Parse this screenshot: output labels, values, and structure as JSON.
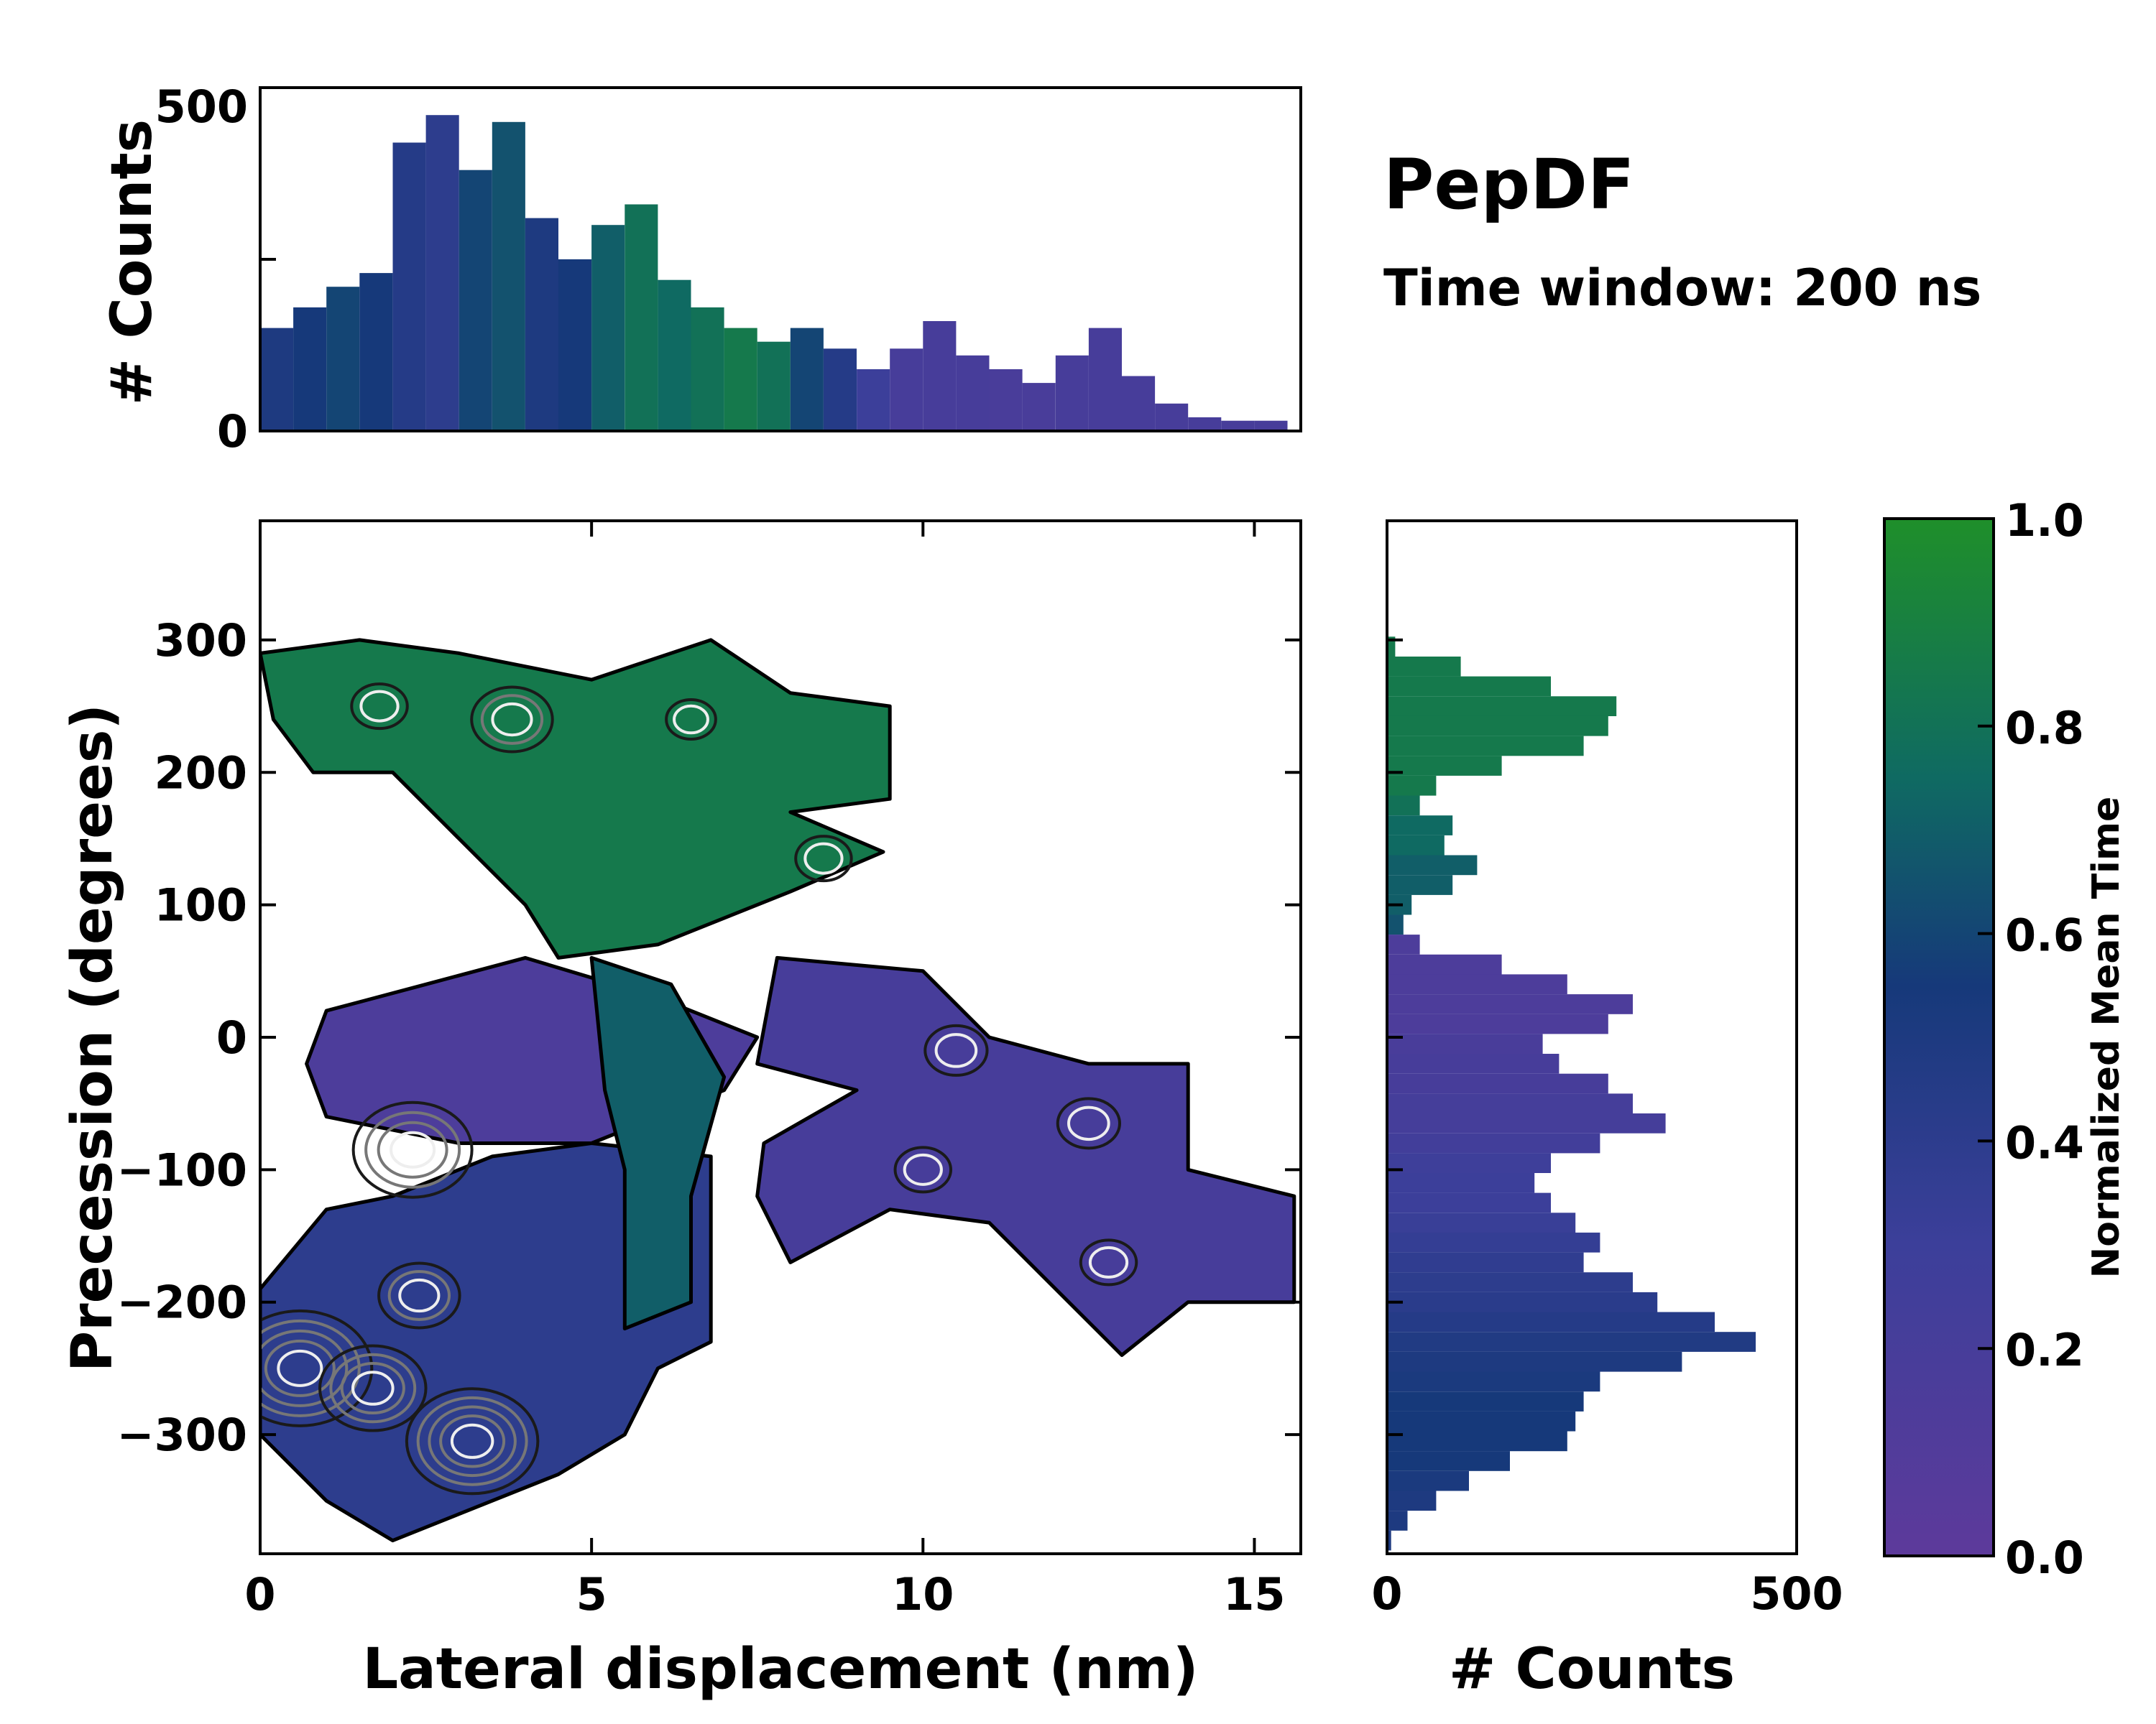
{
  "chart_data": {
    "type": "heatmap",
    "title": "PepDF",
    "subtitle": "Time window: 200 ns",
    "main": {
      "xlabel": "Lateral displacement (nm)",
      "ylabel": "Precession (degrees)",
      "xlim": [
        0,
        15.7
      ],
      "ylim": [
        -390,
        390
      ],
      "xticks": [
        "0",
        "5",
        "10",
        "15"
      ],
      "xtick_values": [
        0,
        5,
        10,
        15
      ],
      "yticks": [
        "300",
        "200",
        "100",
        "0",
        "−100",
        "−200",
        "−300"
      ],
      "ytick_values": [
        300,
        200,
        100,
        0,
        -100,
        -200,
        -300
      ],
      "regions": [
        {
          "name": "upper-green",
          "t": 0.85,
          "pts": [
            [
              0,
              290
            ],
            [
              1.5,
              300
            ],
            [
              3,
              290
            ],
            [
              5,
              270
            ],
            [
              6.8,
              300
            ],
            [
              8,
              260
            ],
            [
              9.5,
              250
            ],
            [
              9.5,
              180
            ],
            [
              8,
              170
            ],
            [
              9.4,
              140
            ],
            [
              8,
              110
            ],
            [
              6,
              70
            ],
            [
              4.5,
              60
            ],
            [
              4,
              100
            ],
            [
              3,
              150
            ],
            [
              2,
              200
            ],
            [
              0.8,
              200
            ],
            [
              0.2,
              240
            ]
          ]
        },
        {
          "name": "middle-purple",
          "t": 0.15,
          "pts": [
            [
              1,
              20
            ],
            [
              2.5,
              40
            ],
            [
              4,
              60
            ],
            [
              6,
              30
            ],
            [
              7.5,
              0
            ],
            [
              7,
              -40
            ],
            [
              5,
              -80
            ],
            [
              3,
              -80
            ],
            [
              1,
              -60
            ],
            [
              0.7,
              -20
            ]
          ]
        },
        {
          "name": "right-purple",
          "t": 0.2,
          "pts": [
            [
              7.8,
              60
            ],
            [
              10,
              50
            ],
            [
              11,
              0
            ],
            [
              12.5,
              -20
            ],
            [
              14,
              -20
            ],
            [
              14,
              -100
            ],
            [
              15.6,
              -120
            ],
            [
              15.6,
              -200
            ],
            [
              14,
              -200
            ],
            [
              13,
              -240
            ],
            [
              11,
              -140
            ],
            [
              9.5,
              -130
            ],
            [
              8,
              -170
            ],
            [
              7.5,
              -120
            ],
            [
              7.6,
              -80
            ],
            [
              9,
              -40
            ],
            [
              7.5,
              -20
            ]
          ]
        },
        {
          "name": "lower-blue",
          "t": 0.4,
          "pts": [
            [
              0,
              -190
            ],
            [
              1,
              -130
            ],
            [
              2,
              -120
            ],
            [
              3.5,
              -90
            ],
            [
              5,
              -80
            ],
            [
              6.8,
              -90
            ],
            [
              6.8,
              -230
            ],
            [
              6,
              -250
            ],
            [
              5.5,
              -300
            ],
            [
              4.5,
              -330
            ],
            [
              3,
              -360
            ],
            [
              2,
              -380
            ],
            [
              1,
              -350
            ],
            [
              0,
              -300
            ]
          ]
        },
        {
          "name": "bridge-green",
          "t": 0.7,
          "pts": [
            [
              5,
              60
            ],
            [
              6.2,
              40
            ],
            [
              7,
              -30
            ],
            [
              6.5,
              -120
            ],
            [
              6.5,
              -200
            ],
            [
              5.5,
              -220
            ],
            [
              5.5,
              -100
            ],
            [
              5.2,
              -40
            ]
          ]
        }
      ],
      "hotspots": [
        {
          "x": 0.6,
          "y": -250,
          "level": 1.0
        },
        {
          "x": 1.7,
          "y": -265,
          "level": 0.7
        },
        {
          "x": 3.2,
          "y": -305,
          "level": 0.9
        },
        {
          "x": 2.3,
          "y": -85,
          "level": 0.8
        },
        {
          "x": 2.4,
          "y": -195,
          "level": 0.5
        },
        {
          "x": 3.8,
          "y": 240,
          "level": 0.5
        },
        {
          "x": 10.5,
          "y": -10,
          "level": 0.35
        },
        {
          "x": 12.5,
          "y": -65,
          "level": 0.35
        },
        {
          "x": 10,
          "y": -100,
          "level": 0.3
        },
        {
          "x": 12.8,
          "y": -170,
          "level": 0.3
        },
        {
          "x": 8.5,
          "y": 135,
          "level": 0.3
        },
        {
          "x": 1.8,
          "y": 250,
          "level": 0.3
        },
        {
          "x": 6.5,
          "y": 240,
          "level": 0.25
        }
      ]
    },
    "top_histogram": {
      "ylabel": "# Counts",
      "ylim": [
        0,
        500
      ],
      "yticks": [
        "0",
        "500"
      ],
      "bin_width_nm": 0.5,
      "bin_centers": [
        0.25,
        0.75,
        1.25,
        1.75,
        2.25,
        2.75,
        3.25,
        3.75,
        4.25,
        4.75,
        5.25,
        5.75,
        6.25,
        6.75,
        7.25,
        7.75,
        8.25,
        8.75,
        9.25,
        9.75,
        10.25,
        10.75,
        11.25,
        11.75,
        12.25,
        12.75,
        13.25,
        13.75,
        14.25,
        14.75,
        15.25
      ],
      "values": [
        150,
        180,
        210,
        230,
        420,
        460,
        380,
        450,
        310,
        250,
        300,
        330,
        220,
        180,
        150,
        130,
        150,
        120,
        90,
        120,
        160,
        110,
        90,
        70,
        110,
        150,
        80,
        40,
        20,
        15,
        15
      ],
      "mean_time": [
        0.5,
        0.55,
        0.6,
        0.55,
        0.45,
        0.4,
        0.6,
        0.65,
        0.5,
        0.55,
        0.7,
        0.8,
        0.75,
        0.8,
        0.85,
        0.8,
        0.6,
        0.45,
        0.3,
        0.2,
        0.2,
        0.2,
        0.18,
        0.18,
        0.2,
        0.2,
        0.2,
        0.2,
        0.2,
        0.2,
        0.2
      ]
    },
    "right_histogram": {
      "xlabel": "# Counts",
      "xlim": [
        0,
        500
      ],
      "xticks": [
        "0",
        "500"
      ],
      "bin_centers": [
        295,
        280,
        265,
        250,
        235,
        220,
        205,
        190,
        175,
        160,
        145,
        130,
        115,
        100,
        85,
        70,
        55,
        40,
        25,
        10,
        -5,
        -20,
        -35,
        -50,
        -65,
        -80,
        -95,
        -110,
        -125,
        -140,
        -155,
        -170,
        -185,
        -200,
        -215,
        -230,
        -245,
        -260,
        -275,
        -290,
        -305,
        -320,
        -335,
        -350,
        -365,
        -380
      ],
      "values": [
        10,
        90,
        200,
        280,
        270,
        240,
        140,
        60,
        40,
        80,
        70,
        110,
        80,
        30,
        20,
        40,
        140,
        220,
        300,
        270,
        190,
        210,
        270,
        300,
        340,
        260,
        200,
        180,
        200,
        230,
        260,
        240,
        300,
        330,
        400,
        450,
        360,
        260,
        240,
        230,
        220,
        150,
        100,
        60,
        25,
        5
      ],
      "mean_time": [
        0.85,
        0.85,
        0.85,
        0.85,
        0.85,
        0.85,
        0.85,
        0.85,
        0.8,
        0.75,
        0.75,
        0.7,
        0.7,
        0.7,
        0.65,
        0.15,
        0.15,
        0.15,
        0.15,
        0.15,
        0.18,
        0.2,
        0.2,
        0.22,
        0.22,
        0.25,
        0.28,
        0.3,
        0.3,
        0.32,
        0.35,
        0.38,
        0.4,
        0.42,
        0.45,
        0.48,
        0.5,
        0.52,
        0.55,
        0.55,
        0.55,
        0.55,
        0.52,
        0.5,
        0.5,
        0.5
      ]
    },
    "colorbar": {
      "label": "Normalized Mean Time",
      "range": [
        0.0,
        1.0
      ],
      "ticks": [
        "0.0",
        "0.2",
        "0.4",
        "0.6",
        "0.8",
        "1.0"
      ],
      "tick_values": [
        0.0,
        0.2,
        0.4,
        0.6,
        0.8,
        1.0
      ],
      "colors": [
        "#5d3a9b",
        "#3c3f9a",
        "#1b3f7a",
        "#0f6a62",
        "#1f8f2a"
      ]
    }
  }
}
